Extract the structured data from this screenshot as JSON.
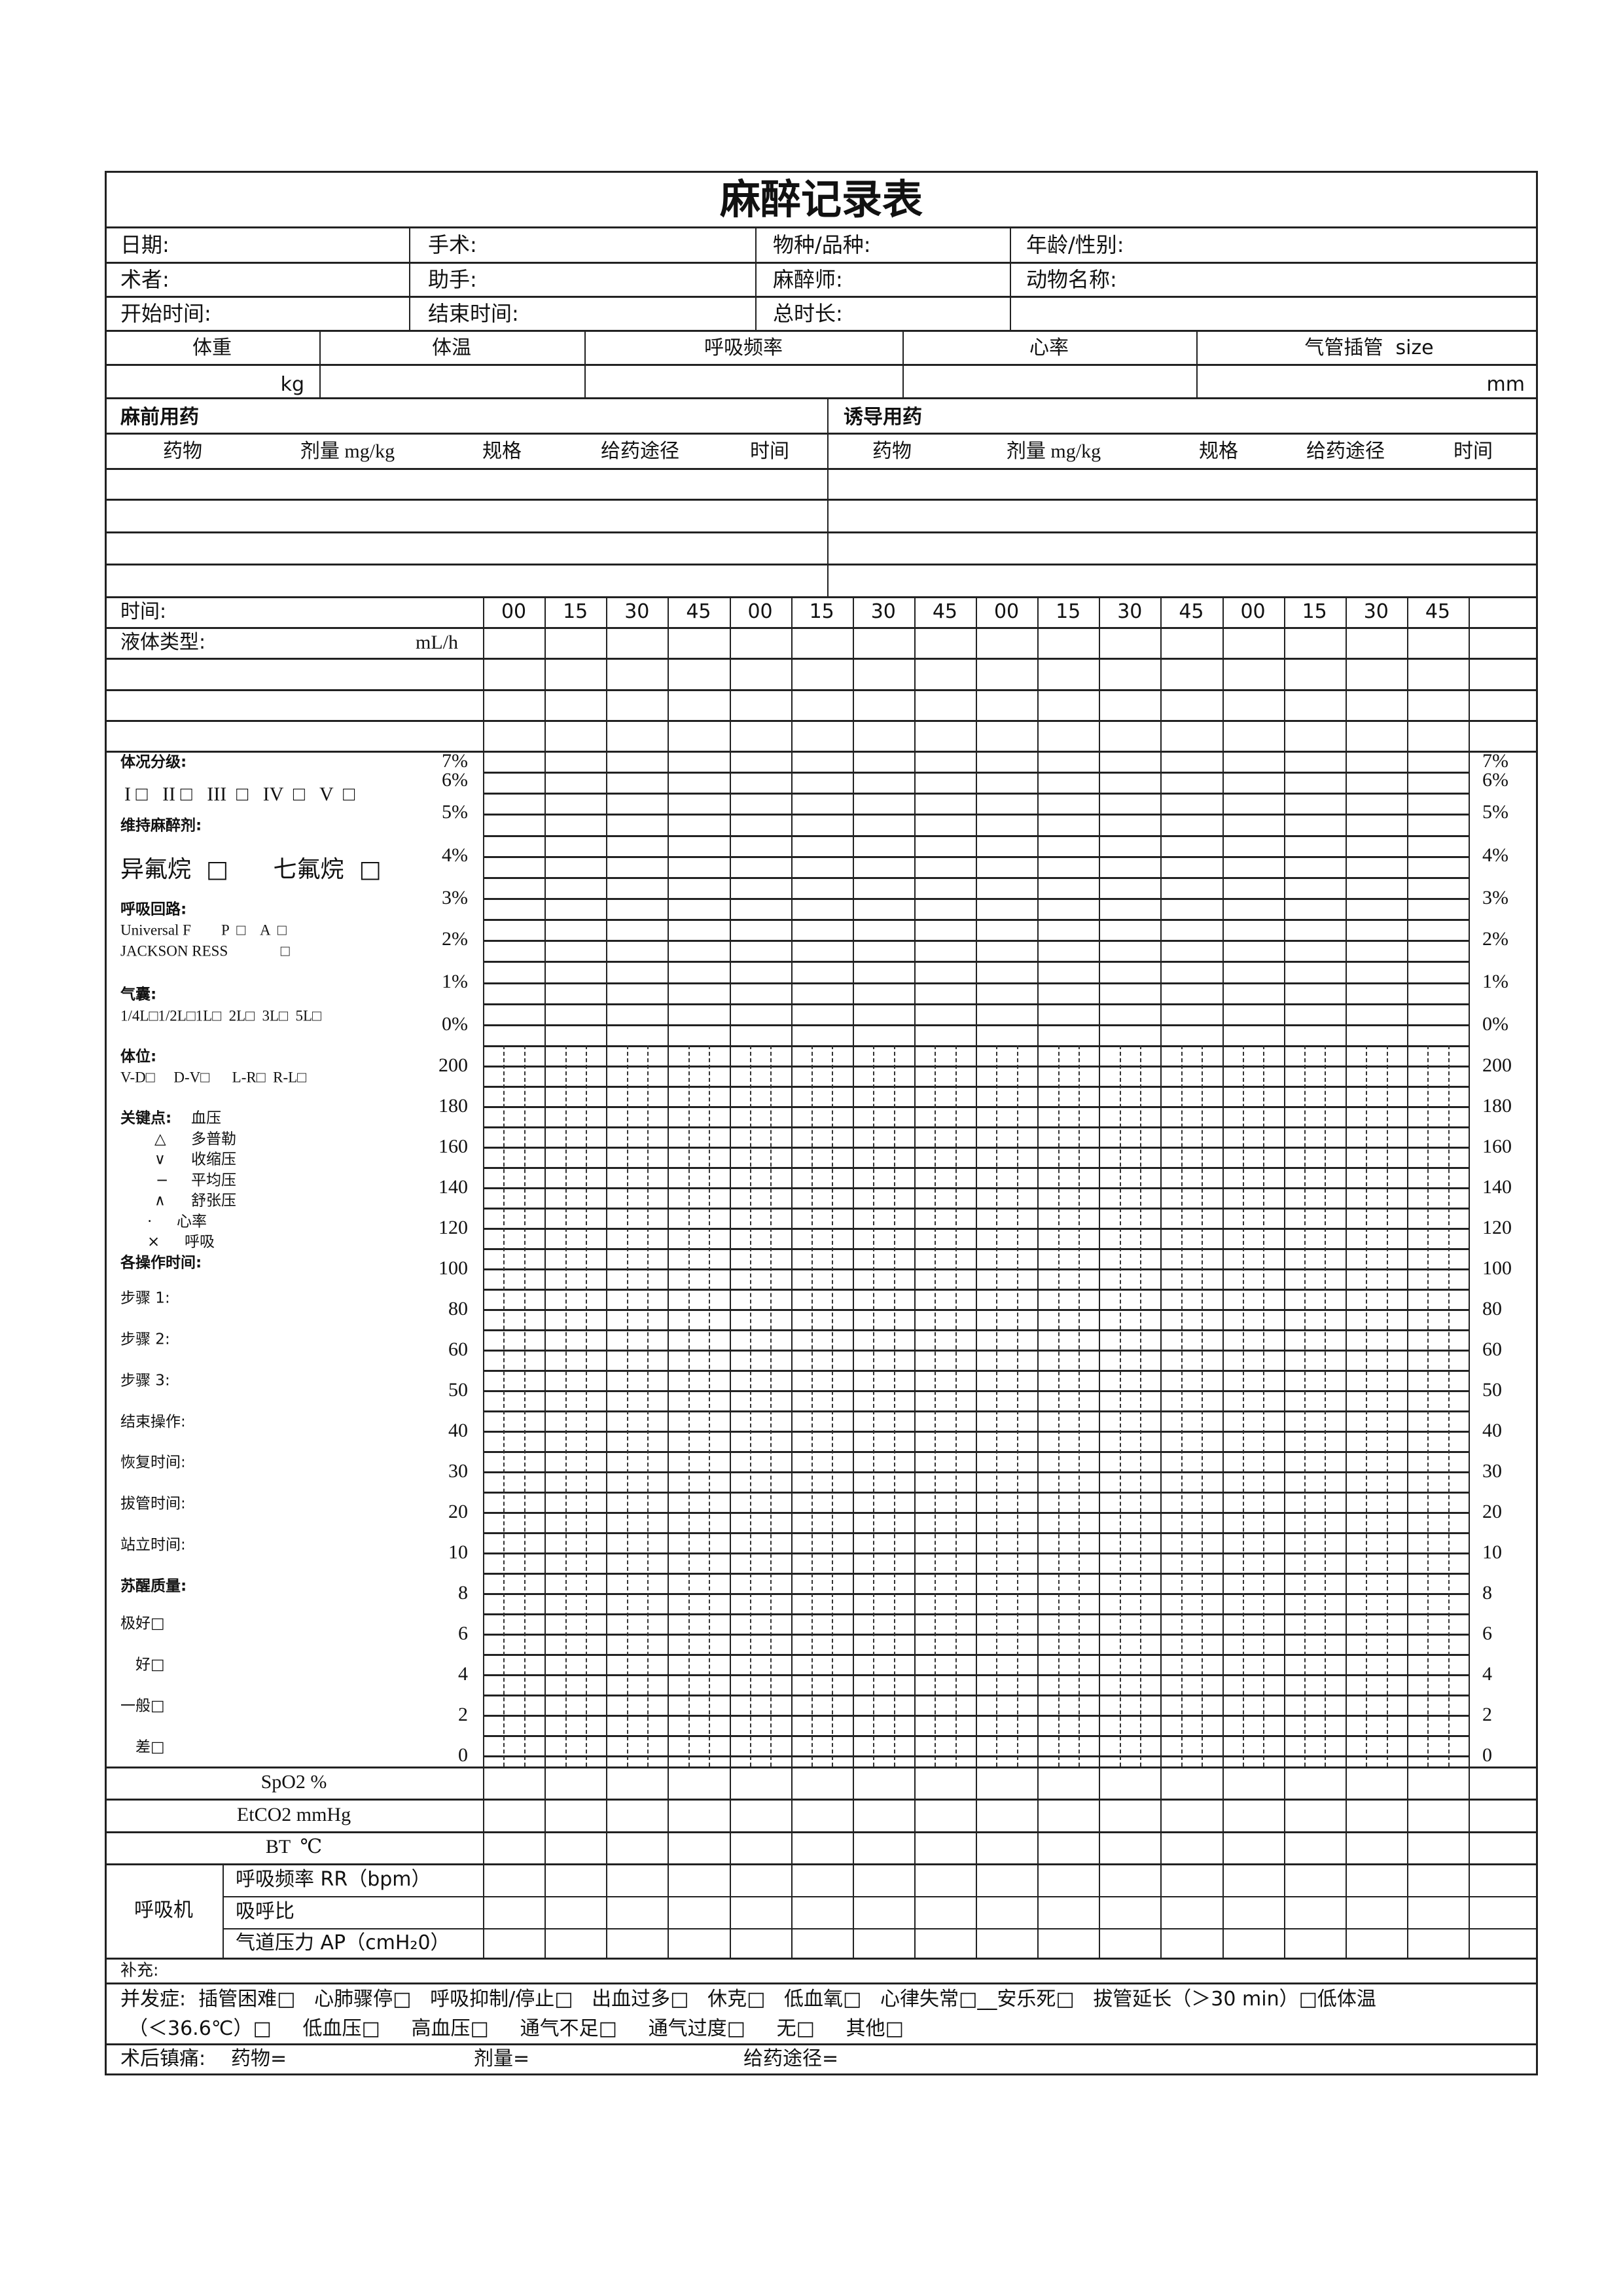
{
  "title": "麻醉记录表",
  "info": [
    [
      "日期:",
      "手术:",
      "物种/品种:",
      "年龄/性别:"
    ],
    [
      "术者:",
      "助手:",
      "麻醉师:",
      "动物名称:"
    ],
    [
      "开始时间:",
      "结束时间:",
      "总时长:",
      ""
    ]
  ],
  "vitals": {
    "headers": [
      "体重",
      "体温",
      "呼吸频率",
      "心率",
      "气管插管  size"
    ],
    "weight_unit": "kg",
    "tube_unit": "mm"
  },
  "premed": {
    "title": "麻前用药",
    "columns": [
      "药物",
      "剂量 mg/kg",
      "规格",
      "给药途径",
      "时间"
    ]
  },
  "induction": {
    "title": "诱导用药",
    "columns": [
      "药物",
      "剂量 mg/kg",
      "规格",
      "给药途径",
      "时间"
    ]
  },
  "timeline": {
    "label": "时间:",
    "ticks": [
      "00",
      "15",
      "30",
      "45",
      "00",
      "15",
      "30",
      "45",
      "00",
      "15",
      "30",
      "45",
      "00",
      "15",
      "30",
      "45"
    ]
  },
  "fluid": {
    "label": "液体类型:",
    "unit": "mL/h"
  },
  "scales": {
    "percent": [
      "7%",
      "6%",
      "5%",
      "4%",
      "3%",
      "2%",
      "1%",
      "0%"
    ],
    "values": [
      "200",
      "180",
      "160",
      "140",
      "120",
      "100",
      "80",
      "60",
      "50",
      "40",
      "30",
      "20",
      "10",
      "8",
      "6",
      "4",
      "2",
      "0"
    ]
  },
  "left_panel": {
    "asa_title": "体况分级:",
    "asa_options": "I □   II □   III  □   IV  □   V  □",
    "maint_title": "维持麻醉剂:",
    "maint_options": "异氟烷  □      七氟烷  □",
    "circuit_title": "呼吸回路:",
    "circuit_line1": "Universal F        P  □    A  □",
    "circuit_line2": "JACKSON RESS              □",
    "bag_title": "气囊:",
    "bag_options": "1/4L□1/2L□1L□  2L□  3L□  5L□",
    "position_title": "体位:",
    "position_options": "V-D□     D-V□      L-R□  R-L□",
    "legend_title": "关键点:",
    "legend_head": "血压",
    "legend": [
      {
        "symbol": "△",
        "label": "多普勒"
      },
      {
        "symbol": "∨",
        "label": "收缩压"
      },
      {
        "symbol": "−",
        "label": "平均压"
      },
      {
        "symbol": "∧",
        "label": "舒张压"
      },
      {
        "symbol": "·",
        "label": "心率"
      },
      {
        "symbol": "×",
        "label": "呼吸"
      }
    ],
    "ops_title": "各操作时间:",
    "ops": [
      "步骤 1:",
      "步骤 2:",
      "步骤 3:",
      "结束操作:",
      "恢复时间:",
      "拔管时间:",
      "站立时间:"
    ],
    "recovery_title": "苏醒质量:",
    "recovery": [
      "极好□",
      "好□",
      "一般□",
      "差□"
    ]
  },
  "monitor_rows": [
    "SpO2 %",
    "EtCO2 mmHg",
    "BT  ℃"
  ],
  "ventilator": {
    "label": "呼吸机",
    "rows": [
      "呼吸频率 RR（bpm）",
      "吸呼比",
      "气道压力 AP（cmH₂0）"
    ]
  },
  "supplement": "补充:",
  "complications": {
    "line1": "并发症:  插管困难□   心肺骤停□   呼吸抑制/停止□   出血过多□   休克□   低血氧□   心律失常□__安乐死□   拔管延长（＞30 min）□低体温",
    "line2": "（＜36.6℃）□     低血压□     高血压□     通气不足□     通气过度□     无□     其他□"
  },
  "postop": {
    "label": "术后镇痛:",
    "drug": "药物=",
    "dose": "剂量=",
    "route": "给药途径="
  }
}
